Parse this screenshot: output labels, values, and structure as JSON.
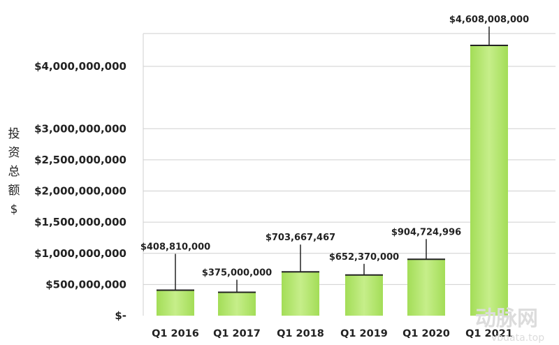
{
  "chart_data": {
    "type": "bar",
    "title": "",
    "xlabel": "",
    "ylabel": "投资总额 $",
    "categories": [
      "Q1  2016",
      "Q1  2017",
      "Q1  2018",
      "Q1  2019",
      "Q1  2020",
      "Q1  2021"
    ],
    "values": [
      408810000,
      375000000,
      703667467,
      652370000,
      904724996,
      4608008000
    ],
    "value_labels": [
      "$408,810,000",
      "$375,000,000",
      "$703,667,467",
      "$652,370,000",
      "$904,724,996",
      "$4,608,008,000"
    ],
    "yticks": [
      0,
      500000000,
      1000000000,
      1500000000,
      2000000000,
      2500000000,
      3000000000,
      4000000000
    ],
    "ytick_labels": [
      "$-",
      "$500,000,000",
      "$1,000,000,000",
      "$1,500,000,000",
      "$2,000,000,000",
      "$2,500,000,000",
      "$3,000,000,000",
      "$4,000,000,000"
    ],
    "grid": true,
    "bar_color": "#a3dd57",
    "bar_color_light": "#c6ee8a",
    "grid_color": "#cfcfcf"
  },
  "watermark": {
    "logo_text": "动脉网",
    "url_text": "vbdata.top"
  }
}
